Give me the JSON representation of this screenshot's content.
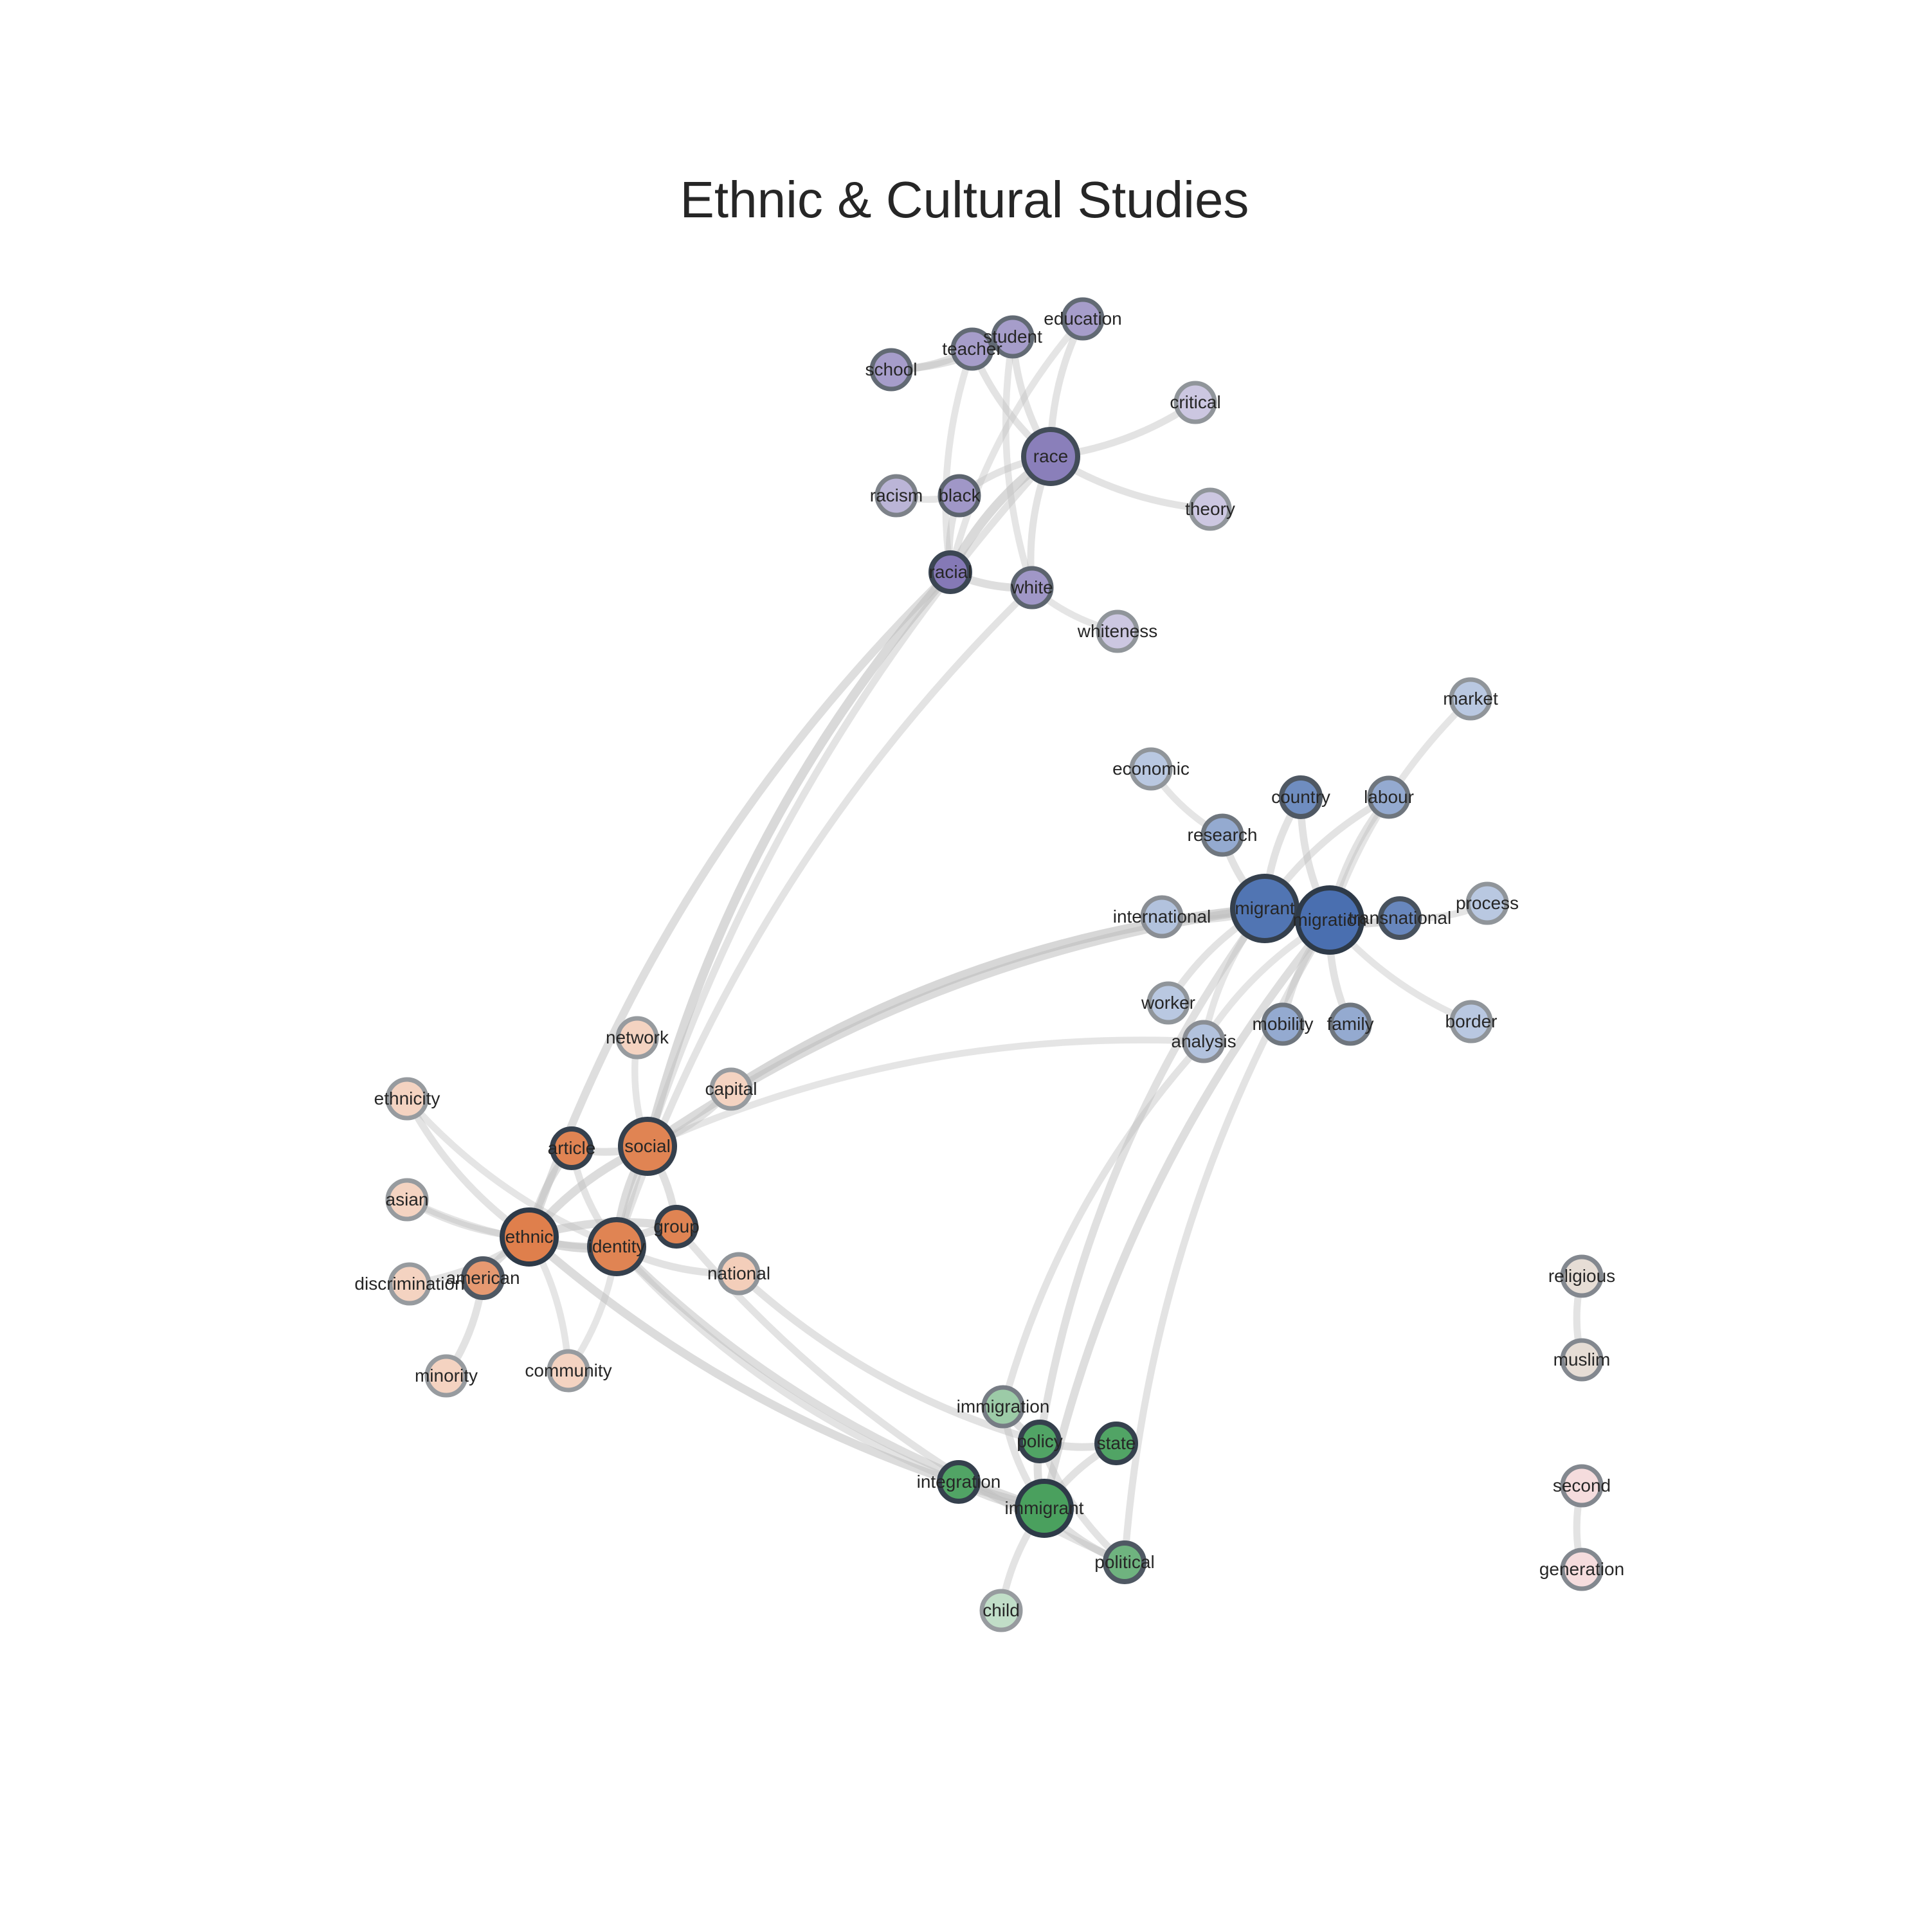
{
  "title": "Ethnic & Cultural Studies",
  "colors": {
    "purple": "#7a6db0",
    "blue": "#4a6fb0",
    "orange": "#df7f4c",
    "green": "#4aa05e",
    "brown": "#c9b6a6",
    "pink": "#e9b4b7",
    "edge": "#bdbdbd",
    "stroke": "#2e3a48",
    "label": "#262626"
  },
  "nodes": [
    {
      "id": "education",
      "label": "education",
      "group": "purple",
      "level": 0.6,
      "size": "s"
    },
    {
      "id": "student",
      "label": "student",
      "group": "purple",
      "level": 0.6,
      "size": "s"
    },
    {
      "id": "teacher",
      "label": "teacher",
      "group": "purple",
      "level": 0.6,
      "size": "s"
    },
    {
      "id": "school",
      "label": "school",
      "group": "purple",
      "level": 0.6,
      "size": "s"
    },
    {
      "id": "critical",
      "label": "critical",
      "group": "purple",
      "level": 0.25,
      "size": "s"
    },
    {
      "id": "race",
      "label": "race",
      "group": "purple",
      "level": 0.85,
      "size": "m"
    },
    {
      "id": "racism",
      "label": "racism",
      "group": "purple",
      "level": 0.4,
      "size": "s"
    },
    {
      "id": "black",
      "label": "black",
      "group": "purple",
      "level": 0.65,
      "size": "s"
    },
    {
      "id": "theory",
      "label": "theory",
      "group": "purple",
      "level": 0.25,
      "size": "s"
    },
    {
      "id": "racial",
      "label": "racial",
      "group": "purple",
      "level": 0.9,
      "size": "s"
    },
    {
      "id": "white",
      "label": "white",
      "group": "purple",
      "level": 0.65,
      "size": "s"
    },
    {
      "id": "whiteness",
      "label": "whiteness",
      "group": "purple",
      "level": 0.25,
      "size": "s"
    },
    {
      "id": "market",
      "label": "market",
      "group": "blue",
      "level": 0.25,
      "size": "s"
    },
    {
      "id": "economic",
      "label": "economic",
      "group": "blue",
      "level": 0.25,
      "size": "s"
    },
    {
      "id": "country",
      "label": "country",
      "group": "blue",
      "level": 0.75,
      "size": "s"
    },
    {
      "id": "labour",
      "label": "labour",
      "group": "blue",
      "level": 0.5,
      "size": "s"
    },
    {
      "id": "research",
      "label": "research",
      "group": "blue",
      "level": 0.5,
      "size": "s"
    },
    {
      "id": "international",
      "label": "international",
      "group": "blue",
      "level": 0.3,
      "size": "s"
    },
    {
      "id": "migrant",
      "label": "migrant",
      "group": "blue",
      "level": 0.95,
      "size": "l"
    },
    {
      "id": "migration",
      "label": "migration",
      "group": "blue",
      "level": 1.0,
      "size": "l"
    },
    {
      "id": "transnational",
      "label": "transnational",
      "group": "blue",
      "level": 0.8,
      "size": "s"
    },
    {
      "id": "process",
      "label": "process",
      "group": "blue",
      "level": 0.25,
      "size": "s"
    },
    {
      "id": "worker",
      "label": "worker",
      "group": "blue",
      "level": 0.25,
      "size": "s"
    },
    {
      "id": "analysis",
      "label": "analysis",
      "group": "blue",
      "level": 0.3,
      "size": "s"
    },
    {
      "id": "mobility",
      "label": "mobility",
      "group": "blue",
      "level": 0.5,
      "size": "s"
    },
    {
      "id": "family",
      "label": "family",
      "group": "blue",
      "level": 0.5,
      "size": "s"
    },
    {
      "id": "border",
      "label": "border",
      "group": "blue",
      "level": 0.25,
      "size": "s"
    },
    {
      "id": "network",
      "label": "network",
      "group": "orange",
      "level": 0.2,
      "size": "s"
    },
    {
      "id": "capital",
      "label": "capital",
      "group": "orange",
      "level": 0.2,
      "size": "s"
    },
    {
      "id": "ethnicity",
      "label": "ethnicity",
      "group": "orange",
      "level": 0.2,
      "size": "s"
    },
    {
      "id": "article",
      "label": "article",
      "group": "orange",
      "level": 0.95,
      "size": "s"
    },
    {
      "id": "social",
      "label": "social",
      "group": "orange",
      "level": 0.95,
      "size": "m"
    },
    {
      "id": "asian",
      "label": "asian",
      "group": "orange",
      "level": 0.2,
      "size": "s"
    },
    {
      "id": "group",
      "label": "group",
      "group": "orange",
      "level": 0.95,
      "size": "s"
    },
    {
      "id": "ethnic",
      "label": "ethnic",
      "group": "orange",
      "level": 1.0,
      "size": "m"
    },
    {
      "id": "identity",
      "label": "identity",
      "group": "orange",
      "level": 0.95,
      "size": "m"
    },
    {
      "id": "national",
      "label": "national",
      "group": "orange",
      "level": 0.25,
      "size": "s"
    },
    {
      "id": "discrimination",
      "label": "discrimination",
      "group": "orange",
      "level": 0.2,
      "size": "s"
    },
    {
      "id": "american",
      "label": "american",
      "group": "orange",
      "level": 0.75,
      "size": "s"
    },
    {
      "id": "minority",
      "label": "minority",
      "group": "orange",
      "level": 0.2,
      "size": "s"
    },
    {
      "id": "community",
      "label": "community",
      "group": "orange",
      "level": 0.2,
      "size": "s"
    },
    {
      "id": "immigration",
      "label": "immigration",
      "group": "green",
      "level": 0.45,
      "size": "s"
    },
    {
      "id": "policy",
      "label": "policy",
      "group": "green",
      "level": 0.95,
      "size": "s"
    },
    {
      "id": "state",
      "label": "state",
      "group": "green",
      "level": 0.95,
      "size": "s"
    },
    {
      "id": "integration",
      "label": "integration",
      "group": "green",
      "level": 0.95,
      "size": "s"
    },
    {
      "id": "immigrant",
      "label": "immigrant",
      "group": "green",
      "level": 1.0,
      "size": "m"
    },
    {
      "id": "political",
      "label": "political",
      "group": "green",
      "level": 0.75,
      "size": "s"
    },
    {
      "id": "child",
      "label": "child",
      "group": "green",
      "level": 0.2,
      "size": "s"
    },
    {
      "id": "religious",
      "label": "religious",
      "group": "brown",
      "level": 0.35,
      "size": "s"
    },
    {
      "id": "muslim",
      "label": "muslim",
      "group": "brown",
      "level": 0.35,
      "size": "s"
    },
    {
      "id": "second",
      "label": "second",
      "group": "pink",
      "level": 0.35,
      "size": "s"
    },
    {
      "id": "generation",
      "label": "generation",
      "group": "pink",
      "level": 0.35,
      "size": "s"
    }
  ],
  "edges": [
    [
      "school",
      "teacher",
      0.4
    ],
    [
      "school",
      "student",
      0.35
    ],
    [
      "teacher",
      "student",
      0.4
    ],
    [
      "teacher",
      "race",
      0.3
    ],
    [
      "student",
      "race",
      0.3
    ],
    [
      "education",
      "race",
      0.3
    ],
    [
      "education",
      "racial",
      0.25
    ],
    [
      "student",
      "white",
      0.25
    ],
    [
      "teacher",
      "racial",
      0.25
    ],
    [
      "race",
      "critical",
      0.3
    ],
    [
      "race",
      "theory",
      0.3
    ],
    [
      "race",
      "racial",
      0.6
    ],
    [
      "race",
      "black",
      0.3
    ],
    [
      "race",
      "white",
      0.3
    ],
    [
      "racism",
      "black",
      0.25
    ],
    [
      "black",
      "racial",
      0.3
    ],
    [
      "racial",
      "white",
      0.45
    ],
    [
      "white",
      "whiteness",
      0.25
    ],
    [
      "racial",
      "social",
      0.6
    ],
    [
      "racial",
      "ethnic",
      0.45
    ],
    [
      "white",
      "identity",
      0.3
    ],
    [
      "race",
      "identity",
      0.3
    ],
    [
      "market",
      "migration",
      0.25
    ],
    [
      "labour",
      "migration",
      0.35
    ],
    [
      "country",
      "migration",
      0.35
    ],
    [
      "country",
      "migrant",
      0.35
    ],
    [
      "economic",
      "research",
      0.25
    ],
    [
      "research",
      "migrant",
      0.35
    ],
    [
      "international",
      "migrant",
      0.3
    ],
    [
      "migrant",
      "migration",
      0.55
    ],
    [
      "migration",
      "transnational",
      0.5
    ],
    [
      "transnational",
      "process",
      0.25
    ],
    [
      "migration",
      "border",
      0.25
    ],
    [
      "migration",
      "family",
      0.35
    ],
    [
      "migration",
      "mobility",
      0.35
    ],
    [
      "migrant",
      "worker",
      0.3
    ],
    [
      "migrant",
      "analysis",
      0.25
    ],
    [
      "migration",
      "analysis",
      0.25
    ],
    [
      "labour",
      "migrant",
      0.3
    ],
    [
      "migrant",
      "capital",
      0.65
    ],
    [
      "migrant",
      "social",
      0.55
    ],
    [
      "analysis",
      "social",
      0.25
    ],
    [
      "migration",
      "immigrant",
      0.45
    ],
    [
      "migrant",
      "policy",
      0.4
    ],
    [
      "migration",
      "political",
      0.3
    ],
    [
      "analysis",
      "immigration",
      0.3
    ],
    [
      "network",
      "social",
      0.25
    ],
    [
      "ethnicity",
      "ethnic",
      0.3
    ],
    [
      "ethnicity",
      "identity",
      0.25
    ],
    [
      "asian",
      "ethnic",
      0.3
    ],
    [
      "asian",
      "identity",
      0.25
    ],
    [
      "article",
      "ethnic",
      0.4
    ],
    [
      "article",
      "social",
      0.4
    ],
    [
      "social",
      "ethnic",
      0.5
    ],
    [
      "social",
      "identity",
      0.5
    ],
    [
      "social",
      "capital",
      0.35
    ],
    [
      "group",
      "ethnic",
      0.5
    ],
    [
      "group",
      "identity",
      0.45
    ],
    [
      "group",
      "social",
      0.4
    ],
    [
      "ethnic",
      "identity",
      0.6
    ],
    [
      "identity",
      "national",
      0.35
    ],
    [
      "ethnic",
      "american",
      0.4
    ],
    [
      "discrimination",
      "ethnic",
      0.3
    ],
    [
      "minority",
      "american",
      0.35
    ],
    [
      "community",
      "identity",
      0.25
    ],
    [
      "community",
      "ethnic",
      0.25
    ],
    [
      "article",
      "identity",
      0.3
    ],
    [
      "ethnic",
      "immigrant",
      0.5
    ],
    [
      "identity",
      "immigrant",
      0.45
    ],
    [
      "group",
      "political",
      0.3
    ],
    [
      "national",
      "policy",
      0.35
    ],
    [
      "identity",
      "integration",
      0.3
    ],
    [
      "immigration",
      "policy",
      0.4
    ],
    [
      "policy",
      "state",
      0.4
    ],
    [
      "policy",
      "immigrant",
      0.45
    ],
    [
      "integration",
      "immigrant",
      0.4
    ],
    [
      "immigrant",
      "political",
      0.4
    ],
    [
      "state",
      "immigrant",
      0.35
    ],
    [
      "immigrant",
      "child",
      0.3
    ],
    [
      "immigration",
      "immigrant",
      0.3
    ],
    [
      "policy",
      "political",
      0.3
    ],
    [
      "religious",
      "muslim",
      0.3
    ],
    [
      "second",
      "generation",
      0.3
    ]
  ]
}
